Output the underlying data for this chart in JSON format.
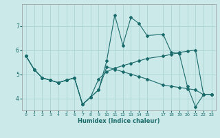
{
  "xlabel": "Humidex (Indice chaleur)",
  "background_color": "#cce9e9",
  "grid_color": "#aad4d4",
  "line_color": "#1a6b6b",
  "xlim": [
    -0.5,
    23.5
  ],
  "ylim": [
    3.5,
    7.9
  ],
  "yticks": [
    4,
    5,
    6,
    7
  ],
  "xticks": [
    0,
    1,
    2,
    3,
    4,
    5,
    6,
    7,
    8,
    9,
    10,
    11,
    12,
    13,
    14,
    15,
    17,
    18,
    19,
    20,
    21,
    22,
    23
  ],
  "line1_x": [
    0,
    1,
    2,
    3,
    4,
    5,
    6,
    7,
    8,
    9,
    10,
    11,
    12,
    13,
    14,
    15,
    17,
    18,
    19,
    20,
    21,
    22,
    23
  ],
  "line1_y": [
    5.75,
    5.2,
    4.85,
    4.75,
    4.65,
    4.75,
    4.85,
    3.75,
    4.05,
    4.35,
    5.55,
    7.45,
    6.2,
    7.35,
    7.1,
    6.6,
    6.65,
    5.9,
    5.85,
    4.5,
    3.65,
    4.15,
    4.15
  ],
  "line2_x": [
    0,
    1,
    2,
    3,
    4,
    5,
    6,
    7,
    8,
    9,
    10,
    11,
    12,
    13,
    14,
    15,
    17,
    18,
    19,
    20,
    21,
    22,
    23
  ],
  "line2_y": [
    5.75,
    5.2,
    4.85,
    4.75,
    4.65,
    4.75,
    4.85,
    3.75,
    4.05,
    4.8,
    5.1,
    5.25,
    5.35,
    5.45,
    5.55,
    5.65,
    5.75,
    5.82,
    5.9,
    5.95,
    6.0,
    4.15,
    4.15
  ],
  "line3_x": [
    0,
    1,
    2,
    3,
    4,
    5,
    6,
    7,
    8,
    9,
    10,
    11,
    12,
    13,
    14,
    15,
    17,
    18,
    19,
    20,
    21,
    22,
    23
  ],
  "line3_y": [
    5.75,
    5.2,
    4.85,
    4.75,
    4.65,
    4.75,
    4.85,
    3.75,
    4.05,
    4.35,
    5.3,
    5.2,
    5.1,
    5.0,
    4.9,
    4.8,
    4.55,
    4.5,
    4.45,
    4.4,
    4.35,
    4.15,
    4.15
  ]
}
